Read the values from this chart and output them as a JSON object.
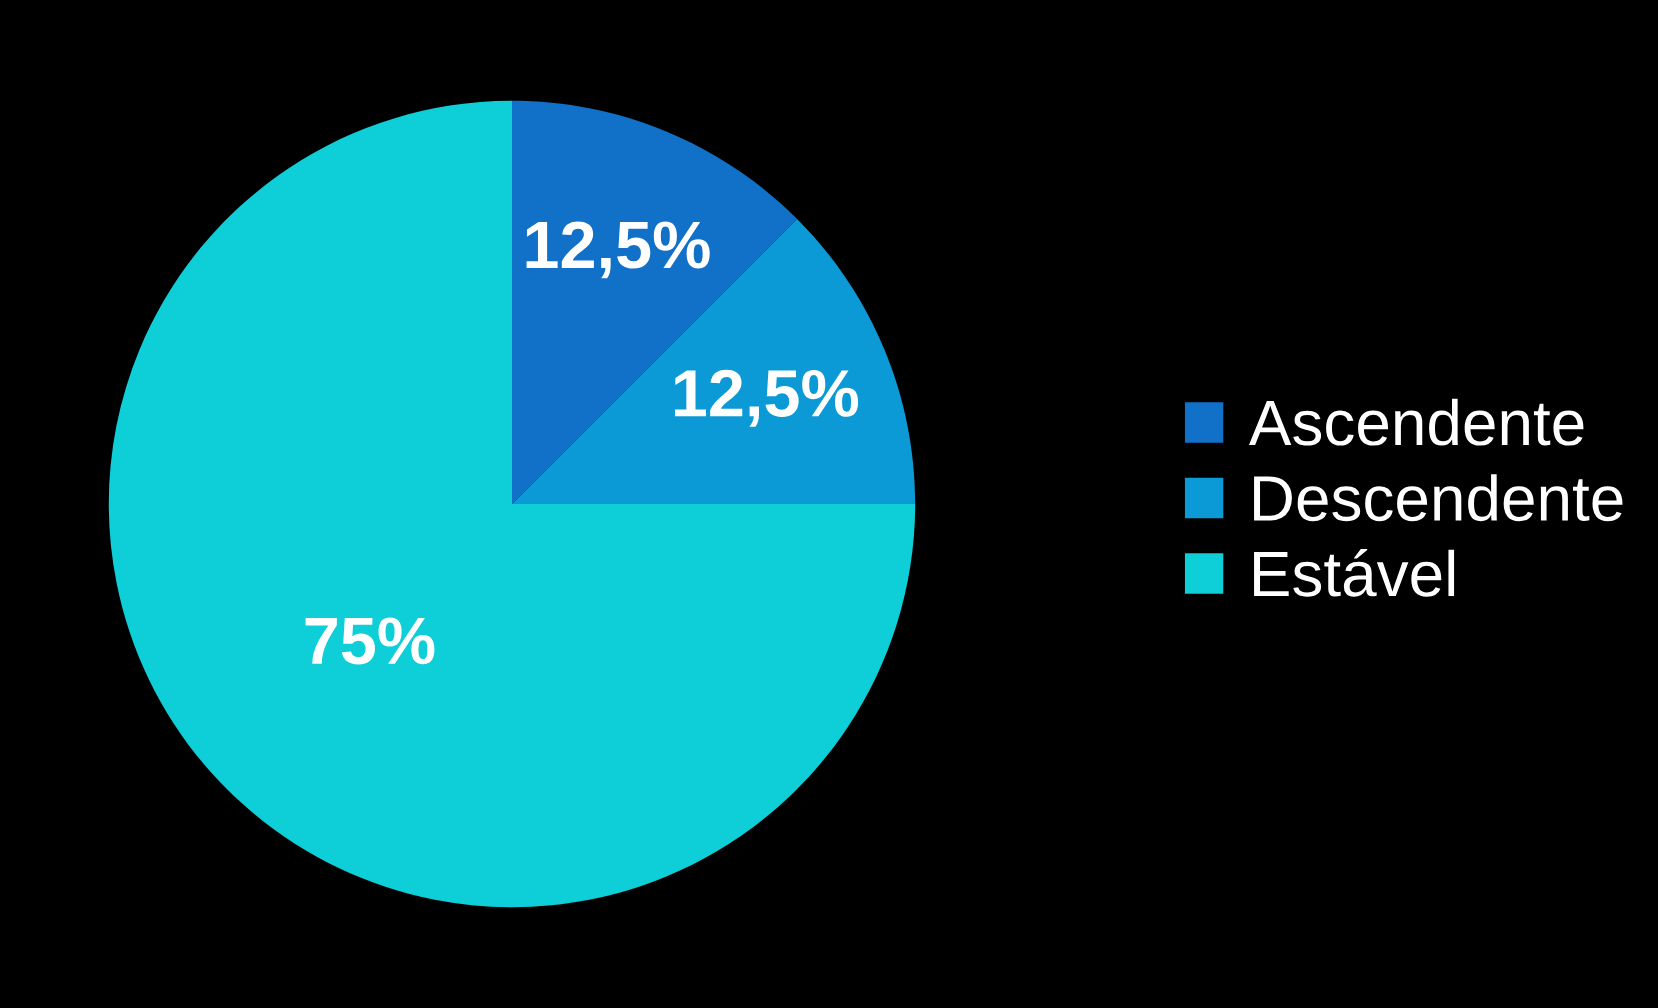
{
  "chart_data": {
    "type": "pie",
    "categories": [
      "Ascendente",
      "Descendente",
      "Estável"
    ],
    "values": [
      12.5,
      12.5,
      75
    ],
    "value_labels": [
      "12,5%",
      "12,5%",
      "75%"
    ],
    "colors": [
      "#1170c8",
      "#0b9ad6",
      "#0ecfd8"
    ],
    "legend": "right"
  }
}
